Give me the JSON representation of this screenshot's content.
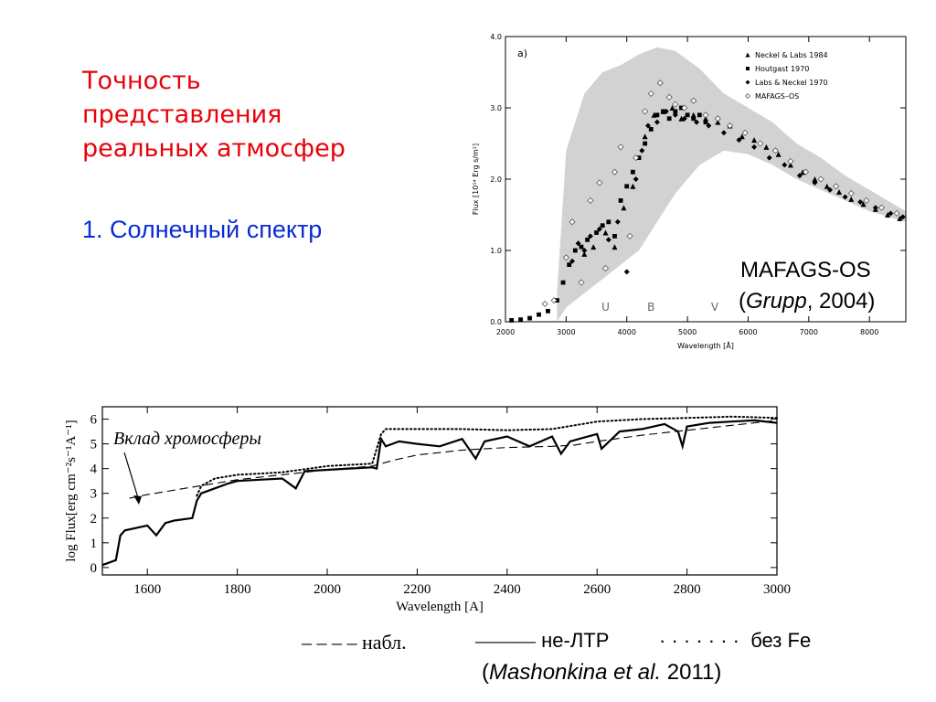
{
  "slide": {
    "title_lines": [
      "Точность",
      "представления",
      "реальных атмосфер"
    ],
    "subtitle": "1. Солнечный спектр",
    "colors": {
      "title": "#e8000a",
      "subtitle": "#0a2bd6"
    }
  },
  "chart_data": [
    {
      "type": "scatter",
      "panel_label": "a)",
      "xlabel": "Wavelength  [Å]",
      "ylabel": "Flux   [10¹⁴ Erg s/m²]",
      "xlim": [
        2000,
        8600
      ],
      "ylim": [
        0.0,
        4.0
      ],
      "xticks": [
        "2000",
        "3000",
        "4000",
        "5000",
        "6000",
        "7000",
        "8000"
      ],
      "yticks": [
        "0.0",
        "1.0",
        "2.0",
        "3.0",
        "4.0"
      ],
      "band_labels": [
        "U",
        "B",
        "V"
      ],
      "model_envelope": {
        "x": [
          2850,
          3000,
          3300,
          3600,
          3900,
          4200,
          4500,
          4800,
          5200,
          5600,
          6000,
          6400,
          6800,
          7200,
          7600,
          8000,
          8400,
          8600
        ],
        "top": [
          0.4,
          2.4,
          3.2,
          3.5,
          3.6,
          3.75,
          3.85,
          3.8,
          3.55,
          3.2,
          3.0,
          2.8,
          2.5,
          2.3,
          2.05,
          1.85,
          1.65,
          1.55
        ],
        "bottom": [
          0.0,
          0.2,
          0.4,
          0.6,
          0.8,
          1.0,
          1.4,
          1.8,
          2.2,
          2.4,
          2.35,
          2.2,
          2.0,
          1.85,
          1.7,
          1.55,
          1.45,
          1.4
        ]
      },
      "series": [
        {
          "name": "Neckel & Labs 1984",
          "marker": "triangle",
          "x": [
            3300,
            3450,
            3650,
            3800,
            3950,
            4100,
            4300,
            4450,
            4600,
            4750,
            4900,
            5100,
            5300,
            5500,
            5700,
            5900,
            6100,
            6300,
            6500,
            6700,
            6900,
            7100,
            7300,
            7500,
            7700,
            7900,
            8100,
            8300,
            8500
          ],
          "y": [
            0.95,
            1.05,
            1.25,
            1.05,
            1.6,
            1.9,
            2.6,
            2.9,
            2.95,
            3.0,
            2.85,
            2.9,
            2.85,
            2.8,
            2.75,
            2.6,
            2.55,
            2.45,
            2.35,
            2.2,
            2.1,
            2.0,
            1.9,
            1.82,
            1.72,
            1.65,
            1.58,
            1.5,
            1.45
          ]
        },
        {
          "name": "Houtgast 1970",
          "marker": "square",
          "x": [
            2100,
            2250,
            2400,
            2550,
            2700,
            2850,
            2950,
            3050,
            3150,
            3250,
            3350,
            3500,
            3600,
            3700,
            3800,
            3900,
            4000,
            4100,
            4200,
            4300,
            4400,
            4500,
            4600,
            4700,
            4800,
            4900,
            5000,
            5100,
            5200,
            5300
          ],
          "y": [
            0.02,
            0.03,
            0.05,
            0.1,
            0.15,
            0.3,
            0.55,
            0.8,
            1.0,
            1.05,
            1.15,
            1.25,
            1.35,
            1.4,
            1.2,
            1.7,
            1.9,
            2.1,
            2.3,
            2.5,
            2.7,
            2.9,
            2.95,
            2.85,
            2.95,
            3.0,
            2.9,
            2.85,
            2.9,
            2.8
          ]
        },
        {
          "name": "Labs & Neckel 1970",
          "marker": "diamond-filled",
          "x": [
            3100,
            3200,
            3300,
            3400,
            3550,
            3700,
            3850,
            4000,
            4150,
            4250,
            4350,
            4500,
            4650,
            4800,
            4950,
            5150,
            5350,
            5600,
            5850,
            6100,
            6350,
            6600,
            6850,
            7100,
            7350,
            7600,
            7850,
            8100,
            8350,
            8550
          ],
          "y": [
            0.85,
            1.1,
            1.0,
            1.2,
            1.3,
            1.15,
            1.4,
            0.7,
            2.0,
            2.4,
            2.75,
            2.8,
            2.95,
            2.9,
            2.85,
            2.8,
            2.75,
            2.65,
            2.55,
            2.45,
            2.3,
            2.2,
            2.05,
            1.95,
            1.85,
            1.75,
            1.68,
            1.6,
            1.52,
            1.47
          ]
        },
        {
          "name": "MAFAGS–OS",
          "marker": "diamond-open",
          "x": [
            2650,
            2800,
            3000,
            3100,
            3250,
            3400,
            3550,
            3650,
            3800,
            3900,
            4050,
            4150,
            4300,
            4400,
            4550,
            4700,
            4800,
            4950,
            5100,
            5300,
            5500,
            5700,
            5950,
            6200,
            6450,
            6700,
            6950,
            7200,
            7450,
            7700,
            7950,
            8200,
            8450
          ],
          "y": [
            0.25,
            0.3,
            0.9,
            1.4,
            0.55,
            1.7,
            1.95,
            0.75,
            2.1,
            2.45,
            1.2,
            2.3,
            2.95,
            3.2,
            3.35,
            3.15,
            3.05,
            3.0,
            3.1,
            2.9,
            2.85,
            2.75,
            2.65,
            2.5,
            2.4,
            2.25,
            2.1,
            2.0,
            1.9,
            1.8,
            1.7,
            1.6,
            1.52
          ]
        }
      ],
      "credit": {
        "name": "MAFAGS-OS",
        "author": "Grupp",
        "year": ", 2004)"
      }
    },
    {
      "type": "line",
      "annotation": "Вклад хромосферы",
      "xlabel": "Wavelength [A]",
      "ylabel": "log Flux[erg cm⁻²s⁻¹A⁻¹]",
      "xlim": [
        1500,
        3000
      ],
      "ylim": [
        -0.3,
        6.5
      ],
      "xticks": [
        "1600",
        "1800",
        "2000",
        "2200",
        "2400",
        "2600",
        "2800",
        "3000"
      ],
      "yticks": [
        "0",
        "1",
        "2",
        "3",
        "4",
        "5",
        "6"
      ],
      "series": [
        {
          "name": "набл.",
          "style": "dashed",
          "x": [
            1560,
            1600,
            1650,
            1700,
            1750,
            1800,
            1850,
            1900,
            2000,
            2100,
            2150,
            2200,
            2300,
            2400,
            2500,
            2550,
            2600,
            2700,
            2800,
            2900,
            2950,
            3000
          ],
          "y": [
            2.8,
            2.95,
            3.1,
            3.25,
            3.4,
            3.55,
            3.65,
            3.75,
            3.95,
            4.1,
            4.35,
            4.55,
            4.75,
            4.85,
            4.9,
            4.95,
            5.1,
            5.35,
            5.55,
            5.75,
            5.85,
            5.95
          ]
        },
        {
          "name": "не-ЛТР",
          "style": "solid",
          "x": [
            1500,
            1530,
            1540,
            1550,
            1600,
            1620,
            1640,
            1660,
            1700,
            1710,
            1720,
            1750,
            1780,
            1800,
            1850,
            1900,
            1930,
            1950,
            2000,
            2050,
            2100,
            2110,
            2120,
            2130,
            2160,
            2200,
            2250,
            2300,
            2330,
            2350,
            2400,
            2450,
            2500,
            2520,
            2540,
            2560,
            2600,
            2610,
            2650,
            2700,
            2750,
            2780,
            2790,
            2800,
            2850,
            2900,
            2950,
            3000
          ],
          "y": [
            0.1,
            0.3,
            1.3,
            1.5,
            1.7,
            1.3,
            1.8,
            1.9,
            2.0,
            2.7,
            3.0,
            3.2,
            3.4,
            3.5,
            3.55,
            3.6,
            3.2,
            3.9,
            3.95,
            4.0,
            4.05,
            4.0,
            5.2,
            4.9,
            5.1,
            5.0,
            4.9,
            5.2,
            4.4,
            5.1,
            5.3,
            4.9,
            5.3,
            4.6,
            5.1,
            5.2,
            5.4,
            4.8,
            5.5,
            5.6,
            5.8,
            5.5,
            4.9,
            5.7,
            5.85,
            5.9,
            5.95,
            5.85
          ]
        },
        {
          "name": "без Fe",
          "style": "dotted",
          "x": [
            1710,
            1720,
            1750,
            1800,
            1850,
            1900,
            2000,
            2100,
            2120,
            2130,
            2200,
            2300,
            2400,
            2500,
            2600,
            2700,
            2800,
            2900,
            3000
          ],
          "y": [
            2.9,
            3.3,
            3.6,
            3.75,
            3.8,
            3.85,
            4.1,
            4.2,
            5.4,
            5.6,
            5.6,
            5.6,
            5.55,
            5.6,
            5.9,
            6.0,
            6.05,
            6.1,
            6.05
          ]
        }
      ],
      "legend": {
        "observed_dash": "– – – –",
        "observed_label": "набл.",
        "nonlte_line": "———",
        "nonlte_label": "не-ЛТР",
        "nofe_dots": "· · · · · · ·",
        "nofe_label": "без Fe"
      },
      "credit": {
        "author": "Mashonkina et al.",
        "year": " 2011)"
      }
    }
  ]
}
